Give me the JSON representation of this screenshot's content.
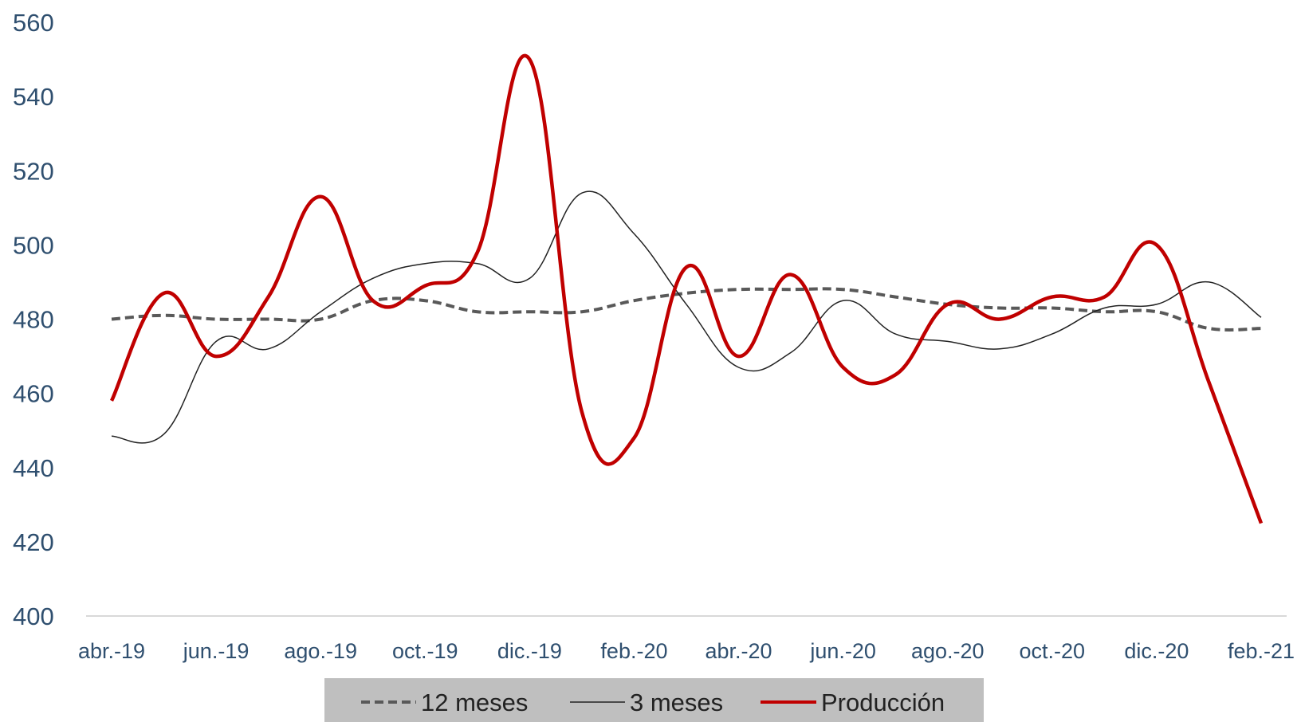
{
  "chart_data": {
    "type": "line",
    "title": "",
    "xlabel": "",
    "ylabel": "",
    "ylim": [
      400,
      560
    ],
    "yticks": [
      "400",
      "420",
      "440",
      "460",
      "480",
      "500",
      "520",
      "540",
      "560"
    ],
    "grid": false,
    "legend_position": "bottom",
    "categories": [
      "abr.-19",
      "may.-19",
      "jun.-19",
      "jul.-19",
      "ago.-19",
      "sep.-19",
      "oct.-19",
      "nov.-19",
      "dic.-19",
      "ene.-20",
      "feb.-20",
      "mar.-20",
      "abr.-20",
      "may.-20",
      "jun.-20",
      "jul.-20",
      "ago.-20",
      "sep.-20",
      "oct.-20",
      "nov.-20",
      "dic.-20",
      "ene.-21",
      "feb.-21"
    ],
    "tick_labels": [
      "abr.-19",
      "jun.-19",
      "ago.-19",
      "oct.-19",
      "dic.-19",
      "feb.-20",
      "abr.-20",
      "jun.-20",
      "ago.-20",
      "oct.-20",
      "dic.-20",
      "feb.-21"
    ],
    "series": [
      {
        "name": "12 meses",
        "style": "dashed",
        "color": "#595959",
        "values": [
          480,
          481,
          480,
          480,
          480,
          485,
          485,
          482,
          482,
          482,
          485,
          487,
          488,
          488,
          488,
          486,
          484,
          483,
          483,
          482,
          482,
          477.5,
          477.5
        ]
      },
      {
        "name": "3 meses",
        "style": "thin",
        "color": "#222222",
        "values": [
          448.5,
          449,
          474,
          472,
          482,
          491,
          495,
          495,
          491,
          514,
          503,
          484,
          467,
          471,
          485,
          476,
          474,
          472,
          476,
          483,
          484,
          490,
          480.5
        ]
      },
      {
        "name": "Producción",
        "style": "thick",
        "color": "#c00000",
        "values": [
          458,
          487,
          470,
          486,
          513,
          485,
          489,
          498,
          550,
          455,
          448,
          494,
          470,
          492,
          467,
          465,
          484,
          480,
          486,
          486,
          500,
          463,
          425
        ]
      }
    ]
  }
}
